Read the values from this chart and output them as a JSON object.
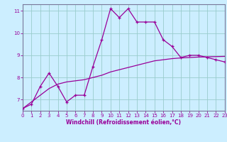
{
  "xlabel": "Windchill (Refroidissement éolien,°C)",
  "bg_color": "#cceeff",
  "line_color": "#990099",
  "grid_color": "#99cccc",
  "axis_color": "#777799",
  "x_min": 0,
  "x_max": 23,
  "y_min": 6.5,
  "y_max": 11.3,
  "yticks": [
    7,
    8,
    9,
    10,
    11
  ],
  "xticks": [
    0,
    1,
    2,
    3,
    4,
    5,
    6,
    7,
    8,
    9,
    10,
    11,
    12,
    13,
    14,
    15,
    16,
    17,
    18,
    19,
    20,
    21,
    22,
    23
  ],
  "windchill": [
    6.6,
    6.8,
    7.6,
    8.2,
    7.6,
    6.9,
    7.2,
    7.2,
    8.5,
    9.7,
    11.1,
    10.7,
    11.1,
    10.5,
    10.5,
    10.5,
    9.7,
    9.4,
    8.9,
    9.0,
    9.0,
    8.9,
    8.8,
    8.7
  ],
  "trend": [
    6.6,
    6.9,
    7.2,
    7.5,
    7.7,
    7.8,
    7.85,
    7.9,
    8.0,
    8.1,
    8.25,
    8.35,
    8.45,
    8.55,
    8.65,
    8.75,
    8.8,
    8.85,
    8.88,
    8.9,
    8.92,
    8.93,
    8.94,
    8.95
  ]
}
